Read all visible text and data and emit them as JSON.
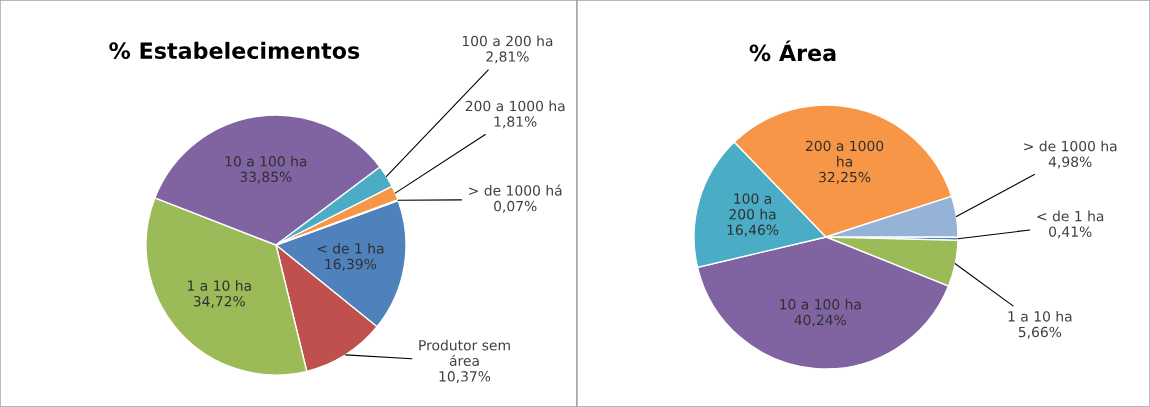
{
  "chart_data": [
    {
      "type": "pie",
      "title": "% Estabelecimentos",
      "categories": [
        "< de 1 ha",
        "Produtor sem\nárea",
        "1 a 10 ha",
        "10 a 100 ha",
        "100 a 200 ha",
        "200 a 1000 ha",
        "> de 1000 há"
      ],
      "values": [
        16.39,
        10.37,
        34.72,
        33.85,
        2.81,
        1.81,
        0.07
      ],
      "colors": [
        "#4f81bd",
        "#c0504d",
        "#9bbb59",
        "#8064a2",
        "#4bacc6",
        "#f79646",
        "#2c4d75"
      ],
      "value_labels": [
        "16,39%",
        "10,37%",
        "34,72%",
        "33,85%",
        "2,81%",
        "1,81%",
        "0,07%"
      ]
    },
    {
      "type": "pie",
      "title": "% Área",
      "categories": [
        "< de 1 ha",
        "1 a 10 ha",
        "10 a 100 ha",
        "100 a\n200 ha",
        "200 a 1000\nha",
        "> de 1000 ha"
      ],
      "values": [
        0.41,
        5.66,
        40.24,
        16.46,
        32.25,
        4.98
      ],
      "colors": [
        "#4f81bd",
        "#9bbb59",
        "#8064a2",
        "#4bacc6",
        "#f79646",
        "#95b3d7"
      ],
      "value_labels": [
        "0,41%",
        "5,66%",
        "40,24%",
        "16,46%",
        "32,25%",
        "4,98%"
      ]
    }
  ]
}
